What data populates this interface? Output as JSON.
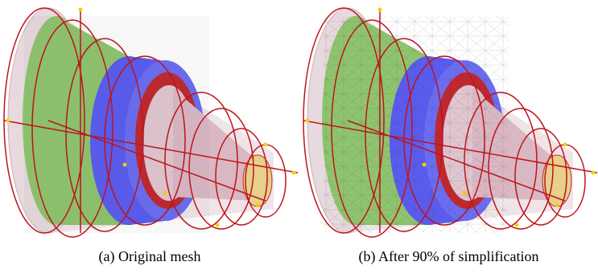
{
  "figure": {
    "panels": [
      {
        "caption": "(a) Original mesh"
      },
      {
        "caption": "(b) After 90% of simplification"
      }
    ]
  }
}
